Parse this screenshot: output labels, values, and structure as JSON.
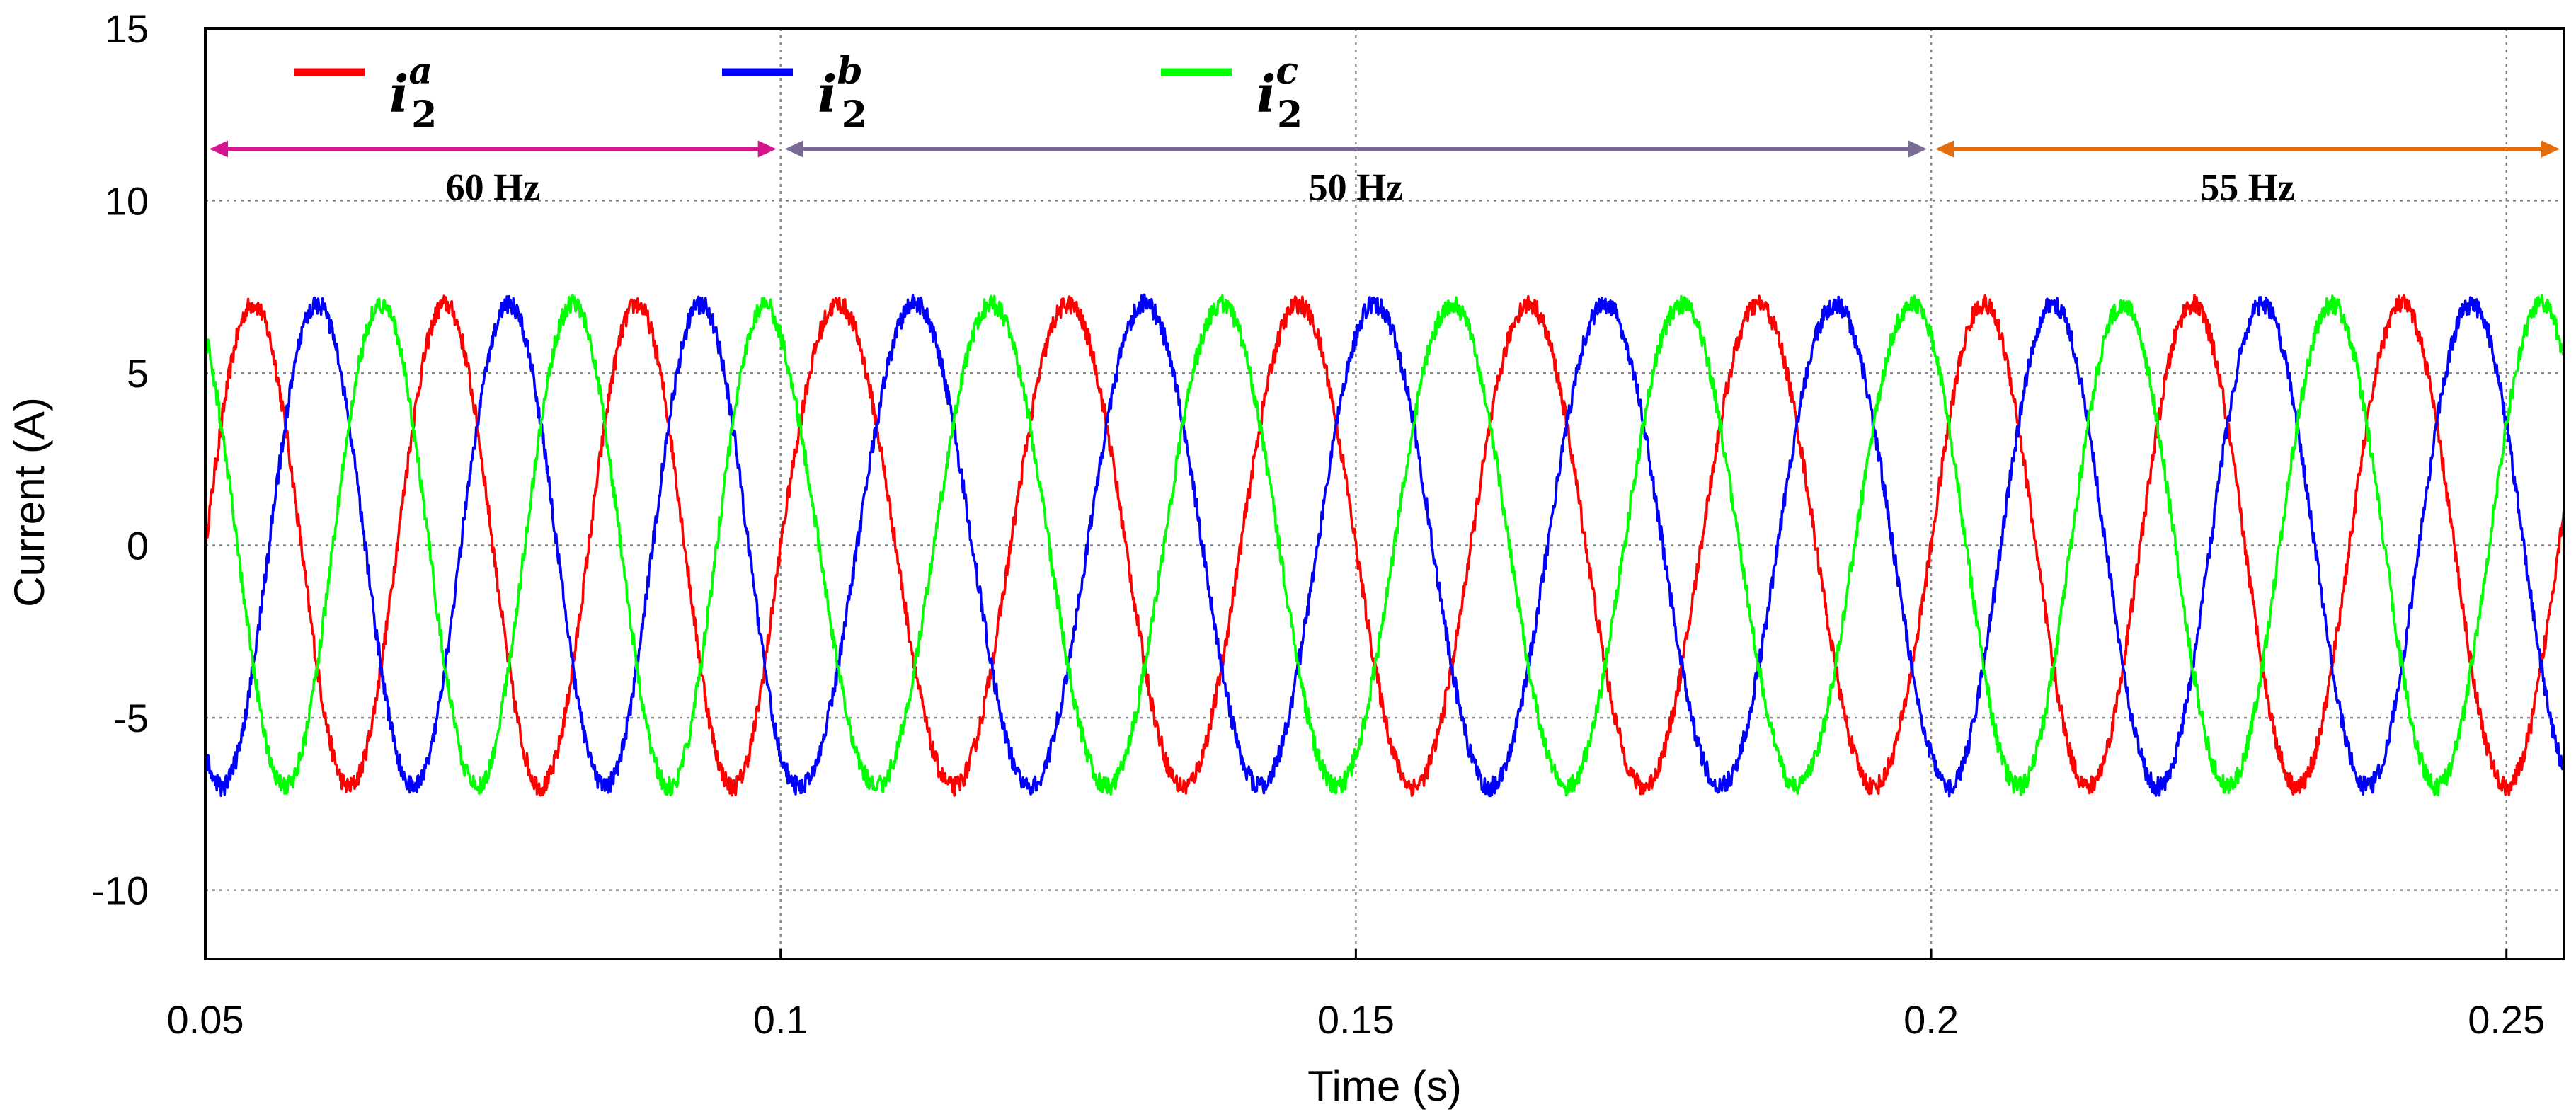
{
  "chart_data": {
    "type": "line",
    "title": "",
    "xlabel": "Time (s)",
    "ylabel": "Current (A)",
    "xlim": [
      0.05,
      0.255
    ],
    "ylim": [
      -12,
      15
    ],
    "x_ticks": [
      0.05,
      0.1,
      0.15,
      0.2,
      0.25
    ],
    "x_tick_labels": [
      "0.05",
      "0.1",
      "0.15",
      "0.2",
      "0.25"
    ],
    "y_ticks": [
      -10,
      -5,
      0,
      5,
      10,
      15
    ],
    "y_tick_labels": [
      "-10",
      "-5",
      "0",
      "5",
      "10",
      "15"
    ],
    "grid": true,
    "legend": "top-left",
    "series": [
      {
        "name": "i2a",
        "symbol": "i",
        "superscript": "a",
        "subscript": "2",
        "color": "#ff0000",
        "amplitude": 7.0,
        "phase_deg": 0
      },
      {
        "name": "i2b",
        "symbol": "i",
        "superscript": "b",
        "subscript": "2",
        "color": "#0000ff",
        "amplitude": 7.0,
        "phase_deg": -120
      },
      {
        "name": "i2c",
        "symbol": "i",
        "superscript": "c",
        "subscript": "2",
        "color": "#00ff00",
        "amplitude": 7.0,
        "phase_deg": 120
      }
    ],
    "segments": [
      {
        "start": 0.05,
        "end": 0.1,
        "frequency_hz": 60,
        "label": "60 Hz",
        "color": "#d6148f"
      },
      {
        "start": 0.1,
        "end": 0.2,
        "frequency_hz": 50,
        "label": "50 Hz",
        "color": "#7a6a96"
      },
      {
        "start": 0.2,
        "end": 0.255,
        "frequency_hz": 55,
        "label": "55 Hz",
        "color": "#e46c0a"
      }
    ],
    "annotation_y": 11.5
  }
}
